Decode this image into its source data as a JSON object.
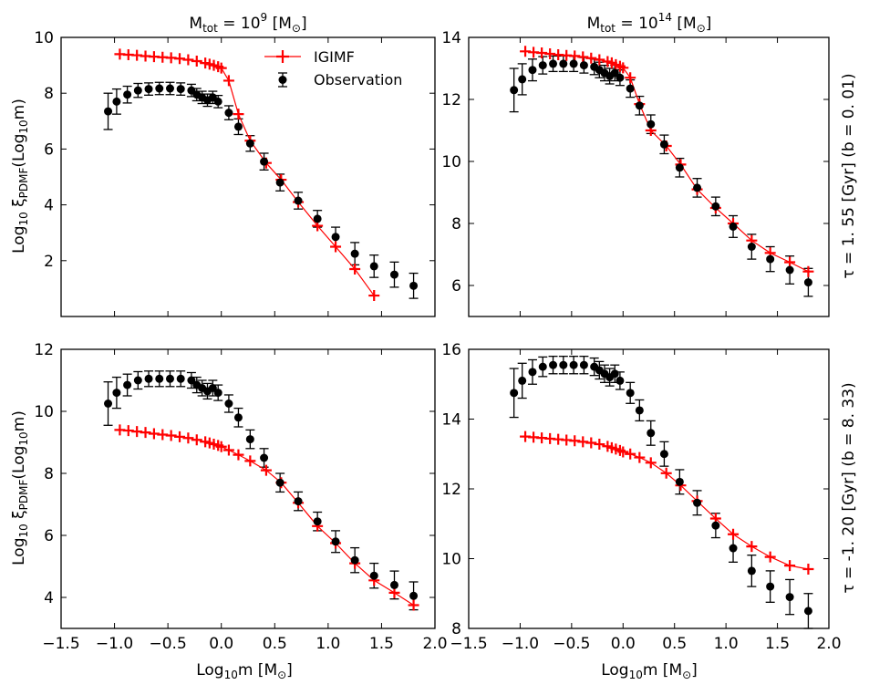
{
  "figure": {
    "col_titles": [
      {
        "prefix": "M",
        "sub": "tot",
        "mid": " =  10",
        "sup": "9",
        "unit_open": " [M",
        "unit_close": "]"
      },
      {
        "prefix": "M",
        "sub": "tot",
        "mid": " =  10",
        "sup": "14",
        "unit_open": " [M",
        "unit_close": "]"
      }
    ],
    "row_titles": [
      {
        "tau_symbol": "τ",
        "tau_text": " =  1. 55 [Gyr]    (b =  0. 01)"
      },
      {
        "tau_symbol": "τ",
        "tau_text": " =  -1. 20 [Gyr]    (b =  8. 33)"
      }
    ],
    "xlabel": {
      "pre": "Log",
      "sub": "10",
      "mid": "m [M",
      "end": "]"
    },
    "ylabel": {
      "pre": "Log",
      "sub1": "10",
      "xi": " ξ",
      "sub2": "PDMF",
      "mid": "(Log",
      "sub3": "10",
      "end": "m)"
    },
    "sun_symbol": "⊙"
  },
  "chart_data": [
    {
      "type": "scatter",
      "panel": "top-left",
      "xlim": [
        -1.5,
        2.0
      ],
      "ylim": [
        0,
        10
      ],
      "xticks": [
        -1.5,
        -1.0,
        -0.5,
        0.0,
        0.5,
        1.0,
        1.5,
        2.0
      ],
      "xtick_labels": [
        "−1.5",
        "−1.0",
        "−0.5",
        "0.0",
        "0.5",
        "1.0",
        "1.5",
        "2.0"
      ],
      "yticks": [
        2,
        4,
        6,
        8,
        10
      ],
      "ytick_labels": [
        "2",
        "4",
        "6",
        "8",
        "10"
      ],
      "legend": {
        "placement": "top-right",
        "entries": [
          "IGIMF",
          "Observation"
        ]
      },
      "series": [
        {
          "name": "IGIMF",
          "style": "red-line-plus",
          "x": [
            -0.95,
            -0.87,
            -0.79,
            -0.71,
            -0.63,
            -0.55,
            -0.47,
            -0.39,
            -0.31,
            -0.23,
            -0.15,
            -0.11,
            -0.07,
            -0.03,
            0.0,
            0.07,
            0.16,
            0.27,
            0.42,
            0.56,
            0.72,
            0.9,
            1.07,
            1.25,
            1.43
          ],
          "y": [
            9.4,
            9.38,
            9.36,
            9.33,
            9.31,
            9.29,
            9.27,
            9.24,
            9.2,
            9.15,
            9.08,
            9.04,
            9.0,
            8.95,
            8.9,
            8.45,
            7.25,
            6.3,
            5.5,
            4.9,
            4.1,
            3.25,
            2.5,
            1.7,
            0.75
          ]
        },
        {
          "name": "Observation",
          "style": "black-dot-errorbar",
          "x": [
            -1.06,
            -0.98,
            -0.88,
            -0.78,
            -0.68,
            -0.58,
            -0.48,
            -0.38,
            -0.28,
            -0.23,
            -0.18,
            -0.13,
            -0.08,
            -0.03,
            0.07,
            0.16,
            0.27,
            0.4,
            0.55,
            0.72,
            0.9,
            1.07,
            1.25,
            1.43,
            1.62,
            1.8
          ],
          "y": [
            7.35,
            7.7,
            7.95,
            8.1,
            8.15,
            8.17,
            8.17,
            8.15,
            8.1,
            7.95,
            7.85,
            7.75,
            7.85,
            7.7,
            7.3,
            6.8,
            6.2,
            5.55,
            4.8,
            4.15,
            3.5,
            2.85,
            2.25,
            1.8,
            1.5,
            1.1
          ],
          "yerr": [
            0.65,
            0.45,
            0.3,
            0.25,
            0.22,
            0.22,
            0.22,
            0.22,
            0.22,
            0.22,
            0.22,
            0.22,
            0.22,
            0.22,
            0.25,
            0.28,
            0.28,
            0.3,
            0.3,
            0.3,
            0.3,
            0.35,
            0.4,
            0.4,
            0.45,
            0.45
          ]
        }
      ]
    },
    {
      "type": "scatter",
      "panel": "top-right",
      "xlim": [
        -1.5,
        2.0
      ],
      "ylim": [
        5,
        14
      ],
      "xticks": [
        -1.5,
        -1.0,
        -0.5,
        0.0,
        0.5,
        1.0,
        1.5,
        2.0
      ],
      "xtick_labels": [
        "−1.5",
        "−1.0",
        "−0.5",
        "0.0",
        "0.5",
        "1.0",
        "1.5",
        "2.0"
      ],
      "yticks": [
        6,
        8,
        10,
        12,
        14
      ],
      "ytick_labels": [
        "6",
        "8",
        "10",
        "12",
        "14"
      ],
      "series": [
        {
          "name": "IGIMF",
          "style": "red-line-plus",
          "x": [
            -0.95,
            -0.87,
            -0.79,
            -0.71,
            -0.63,
            -0.55,
            -0.47,
            -0.39,
            -0.31,
            -0.23,
            -0.15,
            -0.11,
            -0.07,
            -0.03,
            0.0,
            0.07,
            0.16,
            0.27,
            0.42,
            0.56,
            0.72,
            0.9,
            1.07,
            1.25,
            1.43,
            1.62,
            1.8
          ],
          "y": [
            13.55,
            13.52,
            13.5,
            13.47,
            13.44,
            13.42,
            13.4,
            13.37,
            13.33,
            13.28,
            13.22,
            13.18,
            13.12,
            13.07,
            13.02,
            12.7,
            11.85,
            11.0,
            10.5,
            9.9,
            9.1,
            8.5,
            8.0,
            7.45,
            7.05,
            6.75,
            6.45
          ]
        },
        {
          "name": "Observation",
          "style": "black-dot-errorbar",
          "x": [
            -1.06,
            -0.98,
            -0.88,
            -0.78,
            -0.68,
            -0.58,
            -0.48,
            -0.38,
            -0.28,
            -0.23,
            -0.18,
            -0.13,
            -0.08,
            -0.03,
            0.07,
            0.16,
            0.27,
            0.4,
            0.55,
            0.72,
            0.9,
            1.07,
            1.25,
            1.43,
            1.62,
            1.8
          ],
          "y": [
            12.3,
            12.65,
            12.95,
            13.1,
            13.15,
            13.15,
            13.15,
            13.1,
            13.05,
            12.95,
            12.85,
            12.75,
            12.85,
            12.7,
            12.35,
            11.8,
            11.2,
            10.55,
            9.8,
            9.15,
            8.55,
            7.9,
            7.25,
            6.85,
            6.5,
            6.1
          ]
        },
        {
          "name": "Observation-err",
          "yerr": [
            0.7,
            0.5,
            0.35,
            0.28,
            0.25,
            0.25,
            0.25,
            0.25,
            0.25,
            0.25,
            0.25,
            0.25,
            0.25,
            0.25,
            0.28,
            0.3,
            0.3,
            0.3,
            0.3,
            0.3,
            0.3,
            0.35,
            0.4,
            0.4,
            0.45,
            0.45
          ]
        }
      ]
    },
    {
      "type": "scatter",
      "panel": "bottom-left",
      "xlim": [
        -1.5,
        2.0
      ],
      "ylim": [
        3,
        12
      ],
      "xticks": [
        -1.5,
        -1.0,
        -0.5,
        0.0,
        0.5,
        1.0,
        1.5,
        2.0
      ],
      "xtick_labels": [
        "−1.5",
        "−1.0",
        "−0.5",
        "0.0",
        "0.5",
        "1.0",
        "1.5",
        "2.0"
      ],
      "yticks": [
        4,
        6,
        8,
        10,
        12
      ],
      "ytick_labels": [
        "4",
        "6",
        "8",
        "10",
        "12"
      ],
      "series": [
        {
          "name": "IGIMF",
          "style": "red-line-plus",
          "x": [
            -0.95,
            -0.87,
            -0.79,
            -0.71,
            -0.63,
            -0.55,
            -0.47,
            -0.39,
            -0.31,
            -0.23,
            -0.15,
            -0.11,
            -0.07,
            -0.03,
            0.0,
            0.07,
            0.16,
            0.27,
            0.42,
            0.56,
            0.72,
            0.9,
            1.07,
            1.25,
            1.43,
            1.62,
            1.8
          ],
          "y": [
            9.4,
            9.38,
            9.35,
            9.32,
            9.28,
            9.25,
            9.22,
            9.18,
            9.14,
            9.08,
            9.02,
            8.98,
            8.94,
            8.9,
            8.86,
            8.75,
            8.6,
            8.4,
            8.1,
            7.7,
            7.05,
            6.3,
            5.75,
            5.1,
            4.55,
            4.15,
            3.75
          ]
        },
        {
          "name": "Observation",
          "style": "black-dot-errorbar",
          "x": [
            -1.06,
            -0.98,
            -0.88,
            -0.78,
            -0.68,
            -0.58,
            -0.48,
            -0.38,
            -0.28,
            -0.23,
            -0.18,
            -0.13,
            -0.08,
            -0.03,
            0.07,
            0.16,
            0.27,
            0.4,
            0.55,
            0.72,
            0.9,
            1.07,
            1.25,
            1.43,
            1.62,
            1.8
          ],
          "y": [
            10.25,
            10.6,
            10.85,
            11.0,
            11.05,
            11.05,
            11.05,
            11.05,
            11.0,
            10.85,
            10.75,
            10.65,
            10.75,
            10.6,
            10.25,
            9.8,
            9.1,
            8.5,
            7.7,
            7.1,
            6.45,
            5.8,
            5.2,
            4.7,
            4.4,
            4.05
          ]
        },
        {
          "name": "Observation-err",
          "yerr": [
            0.7,
            0.5,
            0.35,
            0.28,
            0.25,
            0.25,
            0.25,
            0.25,
            0.25,
            0.25,
            0.25,
            0.25,
            0.25,
            0.25,
            0.28,
            0.3,
            0.3,
            0.3,
            0.3,
            0.3,
            0.3,
            0.35,
            0.4,
            0.4,
            0.45,
            0.45
          ]
        }
      ]
    },
    {
      "type": "scatter",
      "panel": "bottom-right",
      "xlim": [
        -1.5,
        2.0
      ],
      "ylim": [
        8,
        16
      ],
      "xticks": [
        -1.5,
        -1.0,
        -0.5,
        0.0,
        0.5,
        1.0,
        1.5,
        2.0
      ],
      "xtick_labels": [
        "−1.5",
        "−1.0",
        "−0.5",
        "0.0",
        "0.5",
        "1.0",
        "1.5",
        "2.0"
      ],
      "yticks": [
        8,
        10,
        12,
        14,
        16
      ],
      "ytick_labels": [
        "8",
        "10",
        "12",
        "14",
        "16"
      ],
      "series": [
        {
          "name": "IGIMF",
          "style": "red-line-plus",
          "x": [
            -0.95,
            -0.87,
            -0.79,
            -0.71,
            -0.63,
            -0.55,
            -0.47,
            -0.39,
            -0.31,
            -0.23,
            -0.15,
            -0.11,
            -0.07,
            -0.03,
            0.0,
            0.07,
            0.16,
            0.27,
            0.42,
            0.56,
            0.72,
            0.9,
            1.07,
            1.25,
            1.43,
            1.62,
            1.8
          ],
          "y": [
            13.5,
            13.48,
            13.46,
            13.44,
            13.42,
            13.4,
            13.38,
            13.35,
            13.32,
            13.28,
            13.22,
            13.18,
            13.14,
            13.1,
            13.06,
            13.0,
            12.9,
            12.75,
            12.45,
            12.1,
            11.65,
            11.15,
            10.7,
            10.35,
            10.05,
            9.8,
            9.7
          ]
        },
        {
          "name": "Observation",
          "style": "black-dot-errorbar",
          "x": [
            -1.06,
            -0.98,
            -0.88,
            -0.78,
            -0.68,
            -0.58,
            -0.48,
            -0.38,
            -0.28,
            -0.23,
            -0.18,
            -0.13,
            -0.08,
            -0.03,
            0.07,
            0.16,
            0.27,
            0.4,
            0.55,
            0.72,
            0.9,
            1.07,
            1.25,
            1.43,
            1.62,
            1.8
          ],
          "y": [
            14.75,
            15.1,
            15.35,
            15.5,
            15.55,
            15.55,
            15.55,
            15.55,
            15.5,
            15.4,
            15.3,
            15.2,
            15.3,
            15.1,
            14.75,
            14.25,
            13.6,
            13.0,
            12.2,
            11.6,
            10.95,
            10.3,
            9.65,
            9.2,
            8.9,
            8.5
          ]
        },
        {
          "name": "Observation-err",
          "yerr": [
            0.7,
            0.5,
            0.35,
            0.28,
            0.25,
            0.25,
            0.25,
            0.25,
            0.25,
            0.25,
            0.25,
            0.25,
            0.25,
            0.25,
            0.3,
            0.3,
            0.35,
            0.35,
            0.35,
            0.35,
            0.35,
            0.4,
            0.45,
            0.45,
            0.5,
            0.5
          ]
        }
      ]
    }
  ]
}
